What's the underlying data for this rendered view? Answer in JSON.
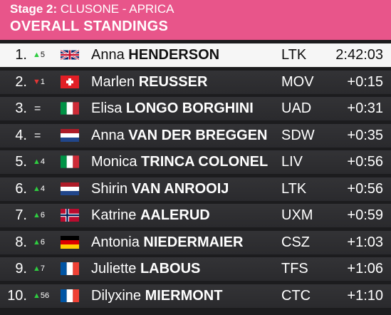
{
  "header": {
    "stage_label": "Stage 2:",
    "route": "CLUSONE - APRICA",
    "title": "OVERALL STANDINGS",
    "bg_color": "#e8558a"
  },
  "standings": [
    {
      "pos": "1.",
      "move_dir": "up",
      "move": "5",
      "flag": "gb-flag-icon",
      "first": "Anna",
      "last": "HENDERSON",
      "team": "LTK",
      "time": "2:42:03"
    },
    {
      "pos": "2.",
      "move_dir": "down",
      "move": "1",
      "flag": "ch-flag-icon",
      "first": "Marlen",
      "last": "REUSSER",
      "team": "MOV",
      "time": "+0:15"
    },
    {
      "pos": "3.",
      "move_dir": "same",
      "move": "=",
      "flag": "it-flag-icon",
      "first": "Elisa",
      "last": "LONGO BORGHINI",
      "team": "UAD",
      "time": "+0:31"
    },
    {
      "pos": "4.",
      "move_dir": "same",
      "move": "=",
      "flag": "nl-flag-icon",
      "first": "Anna",
      "last": "VAN DER BREGGEN",
      "team": "SDW",
      "time": "+0:35"
    },
    {
      "pos": "5.",
      "move_dir": "up",
      "move": "4",
      "flag": "it-flag-icon",
      "first": "Monica",
      "last": "TRINCA COLONEL",
      "team": "LIV",
      "time": "+0:56"
    },
    {
      "pos": "6.",
      "move_dir": "up",
      "move": "4",
      "flag": "nl-flag-icon",
      "first": "Shirin",
      "last": "VAN ANROOIJ",
      "team": "LTK",
      "time": "+0:56"
    },
    {
      "pos": "7.",
      "move_dir": "up",
      "move": "6",
      "flag": "no-flag-icon",
      "first": "Katrine",
      "last": "AALERUD",
      "team": "UXM",
      "time": "+0:59"
    },
    {
      "pos": "8.",
      "move_dir": "up",
      "move": "6",
      "flag": "de-flag-icon",
      "first": "Antonia",
      "last": "NIEDERMAIER",
      "team": "CSZ",
      "time": "+1:03"
    },
    {
      "pos": "9.",
      "move_dir": "up",
      "move": "7",
      "flag": "fr-flag-icon",
      "first": "Juliette",
      "last": "LABOUS",
      "team": "TFS",
      "time": "+1:06"
    },
    {
      "pos": "10.",
      "move_dir": "up",
      "move": "56",
      "flag": "fr-flag-icon",
      "first": "Dilyxine",
      "last": "MIERMONT",
      "team": "CTC",
      "time": "+1:10"
    }
  ]
}
